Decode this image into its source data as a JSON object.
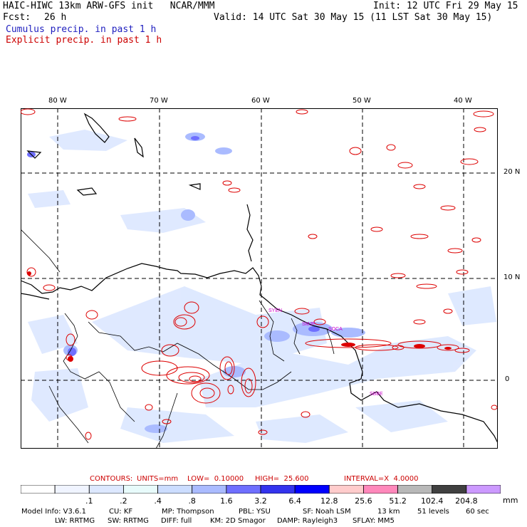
{
  "header": {
    "title": "HAIC-HIWC 13km ARW-GFS init   NCAR/MMM",
    "init": "Init: 12 UTC Fri 29 May 15",
    "fcst_label": "Fcst:",
    "fcst_value": "26 h",
    "valid": "Valid: 14 UTC Sat 30 May 15 (11 LST Sat 30 May 15)",
    "legend_cumulus": "Cumulus precip. in past 1 h",
    "legend_explicit": "Explicit precip. in past 1 h"
  },
  "map": {
    "lon_labels": [
      "80 W",
      "70 W",
      "60 W",
      "50 W",
      "40 W"
    ],
    "lat_labels": [
      "20 N",
      "10 N",
      "0"
    ],
    "station_labels": [
      "SYEN",
      "SMJP",
      "SOCA",
      "SBBE"
    ]
  },
  "contours": {
    "label": "CONTOURS:",
    "units": "UNITS=mm",
    "low": "LOW=  0.10000",
    "high": "HIGH=  25.600",
    "interval": "INTERVAL=X  4.0000"
  },
  "colorbar": {
    "ticks": [
      ".1",
      ".2",
      ".4",
      ".8",
      "1.6",
      "3.2",
      "6.4",
      "12.8",
      "25.6",
      "51.2",
      "102.4",
      "204.8"
    ],
    "unit": "mm",
    "colors": [
      "#ffffff",
      "#f0f4ff",
      "#dde8ff",
      "#e8fbfb",
      "#ccddff",
      "#aabbff",
      "#6f6fff",
      "#3333ee",
      "#0000ff",
      "#ffcccc",
      "#ff88bb",
      "#b8b8b8",
      "#404040",
      "#cc99ff"
    ]
  },
  "model_info": {
    "line1": [
      {
        "label": "Model Info: V3.6.1"
      },
      {
        "label": "CU: KF"
      },
      {
        "label": "MP: Thompson"
      },
      {
        "label": "PBL: YSU"
      },
      {
        "label": "SF: Noah LSM"
      },
      {
        "label": "13 km"
      },
      {
        "label": "51 levels"
      },
      {
        "label": "60 sec"
      }
    ],
    "line2": [
      {
        "label": "LW: RRTMG"
      },
      {
        "label": "SW: RRTMG"
      },
      {
        "label": "DIFF: full"
      },
      {
        "label": "KM: 2D Smagor"
      },
      {
        "label": "DAMP: Rayleigh3"
      },
      {
        "label": "SFLAY: MM5"
      }
    ]
  }
}
